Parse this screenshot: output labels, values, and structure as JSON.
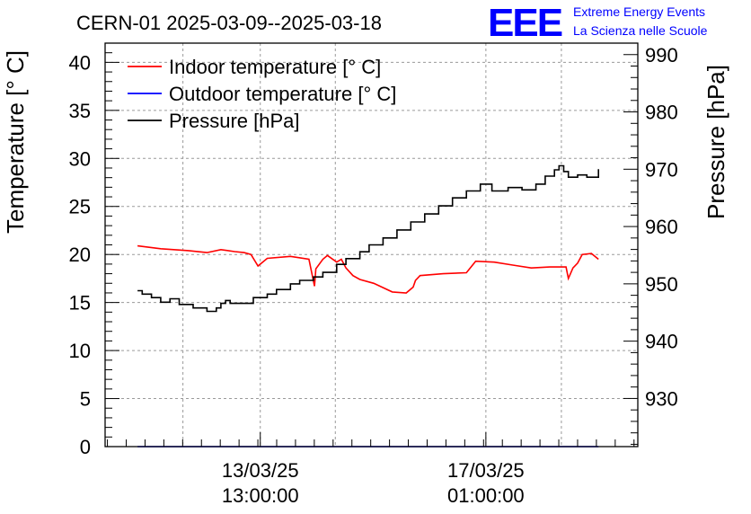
{
  "chart_data": {
    "type": "line",
    "title": "CERN-01 2025-03-09--2025-03-18",
    "ylabel": "Temperature [° C]",
    "y2label": "Pressure [hPa]",
    "xlabel": "",
    "ylim": [
      0,
      42
    ],
    "y2lim": [
      921.6,
      992
    ],
    "yticks": [
      "0",
      "5",
      "10",
      "15",
      "20",
      "25",
      "30",
      "35",
      "40"
    ],
    "y2ticks": [
      "930",
      "940",
      "950",
      "960",
      "970",
      "980",
      "990"
    ],
    "xticks": [
      {
        "date": "13/03/25",
        "time": "13:00:00",
        "x": 0.335
      },
      {
        "date": "17/03/25",
        "time": "01:00:00",
        "x": 0.822
      }
    ],
    "xlim": [
      0,
      1.15
    ],
    "grid": true,
    "legend_position": "top-left",
    "series": [
      {
        "name": "Indoor temperature [° C]",
        "axis": "left",
        "color": "#ff0000",
        "x": [
          0.07,
          0.12,
          0.18,
          0.22,
          0.25,
          0.28,
          0.3,
          0.315,
          0.33,
          0.35,
          0.4,
          0.44,
          0.452,
          0.455,
          0.47,
          0.48,
          0.5,
          0.51,
          0.52,
          0.535,
          0.55,
          0.58,
          0.62,
          0.65,
          0.665,
          0.67,
          0.68,
          0.73,
          0.78,
          0.8,
          0.84,
          0.88,
          0.92,
          0.96,
          0.995,
          1.0,
          1.01,
          1.02,
          1.03,
          1.05,
          1.065
        ],
        "y": [
          20.9,
          20.6,
          20.4,
          20.2,
          20.5,
          20.3,
          20.2,
          20.0,
          18.8,
          19.6,
          19.8,
          19.5,
          16.7,
          18.5,
          19.5,
          19.9,
          19.2,
          19.5,
          18.6,
          17.8,
          17.4,
          17.0,
          16.1,
          16.0,
          16.6,
          17.3,
          17.8,
          18.0,
          18.1,
          19.3,
          19.2,
          18.9,
          18.6,
          18.7,
          18.7,
          17.5,
          18.6,
          19.1,
          20.0,
          20.1,
          19.5
        ]
      },
      {
        "name": "Outdoor temperature [° C]",
        "axis": "left",
        "color": "#0000ff",
        "x": [
          0.07,
          1.065
        ],
        "y": [
          0,
          0
        ]
      },
      {
        "name": "Pressure [hPa]",
        "axis": "right",
        "color": "#000000",
        "x": [
          0.07,
          0.08,
          0.1,
          0.12,
          0.14,
          0.16,
          0.18,
          0.19,
          0.2,
          0.22,
          0.24,
          0.25,
          0.26,
          0.27,
          0.3,
          0.32,
          0.35,
          0.37,
          0.4,
          0.42,
          0.45,
          0.47,
          0.5,
          0.52,
          0.55,
          0.57,
          0.6,
          0.63,
          0.66,
          0.69,
          0.72,
          0.75,
          0.78,
          0.81,
          0.82,
          0.835,
          0.87,
          0.9,
          0.93,
          0.95,
          0.97,
          0.98,
          0.99,
          1.0,
          1.02,
          1.04,
          1.065
        ],
        "y": [
          948.8,
          948.2,
          947.6,
          946.8,
          947.4,
          946.4,
          946.4,
          945.8,
          945.8,
          945.2,
          945.8,
          946.6,
          947.1,
          946.6,
          946.6,
          947.6,
          948.2,
          949.0,
          950.0,
          950.6,
          951.2,
          952.0,
          953.4,
          954.4,
          955.6,
          956.8,
          958.0,
          959.4,
          960.8,
          962.2,
          963.6,
          965.0,
          966.2,
          967.4,
          967.4,
          966.2,
          966.8,
          966.4,
          967.4,
          968.8,
          969.9,
          970.6,
          969.6,
          968.6,
          969.0,
          968.6,
          970.0
        ]
      }
    ]
  },
  "logo": {
    "mark": "EEE",
    "line1": "Extreme Energy Events",
    "line2": "La Scienza nelle Scuole",
    "color": "#0000ff"
  }
}
